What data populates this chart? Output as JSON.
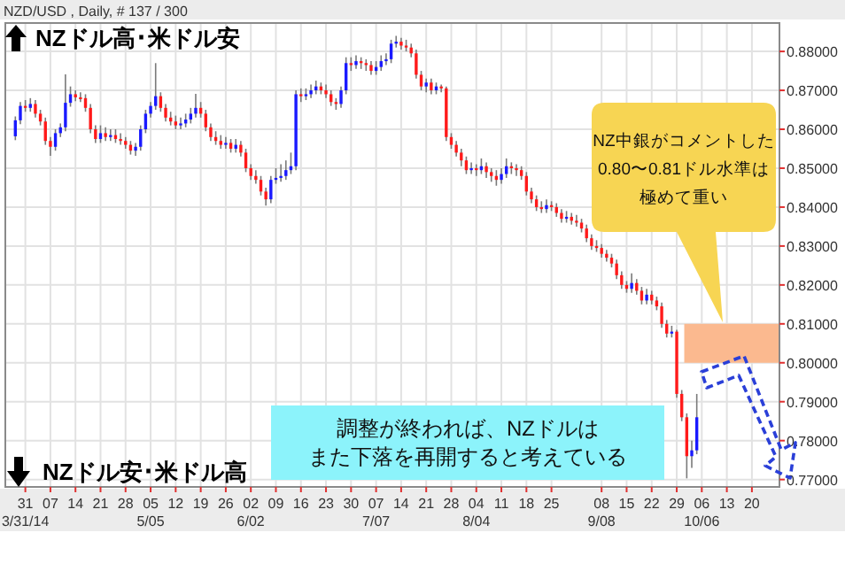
{
  "chart_data": {
    "type": "candlestick",
    "title": "NZD/USD , Daily, # 137 / 300",
    "categories": [
      null,
      null,
      "31\n3/31/14",
      null,
      null,
      null,
      null,
      "07",
      null,
      null,
      null,
      null,
      "14",
      null,
      null,
      null,
      null,
      "21",
      null,
      null,
      null,
      null,
      "28",
      null,
      null,
      null,
      null,
      "05\n5/05",
      null,
      null,
      null,
      null,
      "12",
      null,
      null,
      null,
      null,
      "19",
      null,
      null,
      null,
      null,
      "26",
      null,
      null,
      null,
      null,
      "02\n6/02",
      null,
      null,
      null,
      null,
      "09",
      null,
      null,
      null,
      null,
      "16",
      null,
      null,
      null,
      null,
      "23",
      null,
      null,
      null,
      null,
      "30",
      null,
      null,
      null,
      null,
      "07\n7/07",
      null,
      null,
      null,
      null,
      "14",
      null,
      null,
      null,
      null,
      "21",
      null,
      null,
      null,
      null,
      "28",
      null,
      null,
      null,
      null,
      "04\n8/04",
      null,
      null,
      null,
      null,
      "11",
      null,
      null,
      null,
      null,
      "18",
      null,
      null,
      null,
      null,
      "25",
      null,
      null,
      null,
      null,
      null,
      null,
      null,
      null,
      null,
      "08\n9/08",
      null,
      null,
      null,
      null,
      "15",
      null,
      null,
      null,
      null,
      "22",
      null,
      null,
      null,
      null,
      "29",
      null,
      null,
      null,
      null,
      "06\n10/06",
      null,
      null,
      null,
      null,
      "13",
      null,
      null,
      null,
      null,
      "20",
      null,
      null,
      null,
      null
    ],
    "ohlc": [
      [
        0.8582,
        0.8633,
        0.8572,
        0.8623
      ],
      [
        0.8623,
        0.867,
        0.8613,
        0.866
      ],
      [
        0.866,
        0.8675,
        0.8645,
        0.8655
      ],
      [
        0.8655,
        0.868,
        0.8645,
        0.8665
      ],
      [
        0.8665,
        0.8675,
        0.863,
        0.864
      ],
      [
        0.864,
        0.865,
        0.861,
        0.862
      ],
      [
        0.862,
        0.863,
        0.856,
        0.857
      ],
      [
        0.857,
        0.858,
        0.8532,
        0.8555
      ],
      [
        0.8555,
        0.86,
        0.8545,
        0.859
      ],
      [
        0.859,
        0.8615,
        0.858,
        0.8605
      ],
      [
        0.8605,
        0.8741,
        0.8595,
        0.8668
      ],
      [
        0.8668,
        0.871,
        0.8658,
        0.869
      ],
      [
        0.869,
        0.87,
        0.8672,
        0.8682
      ],
      [
        0.8682,
        0.8695,
        0.867,
        0.868
      ],
      [
        0.868,
        0.869,
        0.8645,
        0.8655
      ],
      [
        0.8655,
        0.8665,
        0.859,
        0.86
      ],
      [
        0.86,
        0.861,
        0.8565,
        0.8575
      ],
      [
        0.8575,
        0.861,
        0.8565,
        0.859
      ],
      [
        0.859,
        0.8605,
        0.857,
        0.858
      ],
      [
        0.858,
        0.86,
        0.857,
        0.8585
      ],
      [
        0.8585,
        0.86,
        0.8565,
        0.8575
      ],
      [
        0.8575,
        0.859,
        0.856,
        0.857
      ],
      [
        0.857,
        0.858,
        0.855,
        0.856
      ],
      [
        0.856,
        0.857,
        0.8535,
        0.8545
      ],
      [
        0.8545,
        0.8565,
        0.8532,
        0.8555
      ],
      [
        0.8555,
        0.861,
        0.8545,
        0.86
      ],
      [
        0.86,
        0.865,
        0.859,
        0.864
      ],
      [
        0.864,
        0.867,
        0.863,
        0.866
      ],
      [
        0.866,
        0.877,
        0.865,
        0.8685
      ],
      [
        0.8685,
        0.8695,
        0.8645,
        0.8655
      ],
      [
        0.8655,
        0.8665,
        0.862,
        0.863
      ],
      [
        0.863,
        0.8645,
        0.861,
        0.862
      ],
      [
        0.862,
        0.8635,
        0.86,
        0.861
      ],
      [
        0.861,
        0.863,
        0.86,
        0.8615
      ],
      [
        0.8615,
        0.864,
        0.8605,
        0.8625
      ],
      [
        0.8625,
        0.8655,
        0.8615,
        0.864
      ],
      [
        0.864,
        0.8691,
        0.863,
        0.8655
      ],
      [
        0.8655,
        0.867,
        0.863,
        0.864
      ],
      [
        0.864,
        0.865,
        0.8595,
        0.8605
      ],
      [
        0.8605,
        0.8615,
        0.857,
        0.858
      ],
      [
        0.858,
        0.8595,
        0.856,
        0.857
      ],
      [
        0.857,
        0.8585,
        0.855,
        0.856
      ],
      [
        0.856,
        0.858,
        0.855,
        0.8565
      ],
      [
        0.8565,
        0.8575,
        0.854,
        0.855
      ],
      [
        0.855,
        0.8575,
        0.854,
        0.856
      ],
      [
        0.856,
        0.857,
        0.853,
        0.854
      ],
      [
        0.854,
        0.855,
        0.849,
        0.85
      ],
      [
        0.85,
        0.851,
        0.847,
        0.848
      ],
      [
        0.848,
        0.8495,
        0.846,
        0.847
      ],
      [
        0.847,
        0.848,
        0.843,
        0.844
      ],
      [
        0.844,
        0.845,
        0.8404,
        0.842
      ],
      [
        0.842,
        0.848,
        0.841,
        0.847
      ],
      [
        0.847,
        0.85,
        0.846,
        0.8475
      ],
      [
        0.8475,
        0.851,
        0.8465,
        0.848
      ],
      [
        0.848,
        0.852,
        0.847,
        0.8495
      ],
      [
        0.8495,
        0.854,
        0.8485,
        0.8505
      ],
      [
        0.8505,
        0.87,
        0.8495,
        0.869
      ],
      [
        0.869,
        0.8705,
        0.867,
        0.8685
      ],
      [
        0.8685,
        0.8705,
        0.8675,
        0.869
      ],
      [
        0.869,
        0.8715,
        0.868,
        0.87
      ],
      [
        0.87,
        0.8725,
        0.869,
        0.871
      ],
      [
        0.871,
        0.872,
        0.869,
        0.87
      ],
      [
        0.87,
        0.8715,
        0.868,
        0.869
      ],
      [
        0.869,
        0.87,
        0.866,
        0.867
      ],
      [
        0.867,
        0.868,
        0.865,
        0.8665
      ],
      [
        0.8665,
        0.871,
        0.8655,
        0.87
      ],
      [
        0.87,
        0.8785,
        0.869,
        0.877
      ],
      [
        0.877,
        0.8785,
        0.875,
        0.8765
      ],
      [
        0.8765,
        0.879,
        0.8755,
        0.8775
      ],
      [
        0.8775,
        0.8785,
        0.8755,
        0.877
      ],
      [
        0.877,
        0.878,
        0.875,
        0.8765
      ],
      [
        0.8765,
        0.8775,
        0.874,
        0.875
      ],
      [
        0.875,
        0.8775,
        0.874,
        0.876
      ],
      [
        0.876,
        0.879,
        0.875,
        0.8775
      ],
      [
        0.8775,
        0.8795,
        0.8765,
        0.878
      ],
      [
        0.878,
        0.883,
        0.877,
        0.882
      ],
      [
        0.882,
        0.884,
        0.881,
        0.8825
      ],
      [
        0.8825,
        0.8835,
        0.8805,
        0.8815
      ],
      [
        0.8815,
        0.883,
        0.88,
        0.881
      ],
      [
        0.881,
        0.882,
        0.8785,
        0.8795
      ],
      [
        0.8795,
        0.8805,
        0.873,
        0.874
      ],
      [
        0.874,
        0.875,
        0.87,
        0.871
      ],
      [
        0.871,
        0.873,
        0.8695,
        0.872
      ],
      [
        0.872,
        0.873,
        0.869,
        0.87
      ],
      [
        0.87,
        0.872,
        0.869,
        0.871
      ],
      [
        0.871,
        0.8715,
        0.8695,
        0.8705
      ],
      [
        0.8705,
        0.871,
        0.857,
        0.858
      ],
      [
        0.858,
        0.859,
        0.855,
        0.856
      ],
      [
        0.856,
        0.857,
        0.853,
        0.854
      ],
      [
        0.854,
        0.855,
        0.8505,
        0.852
      ],
      [
        0.852,
        0.853,
        0.8485,
        0.8495
      ],
      [
        0.8495,
        0.8515,
        0.8485,
        0.85
      ],
      [
        0.85,
        0.851,
        0.848,
        0.8495
      ],
      [
        0.8495,
        0.8525,
        0.8485,
        0.8505
      ],
      [
        0.8505,
        0.8515,
        0.8475,
        0.849
      ],
      [
        0.849,
        0.85,
        0.8465,
        0.848
      ],
      [
        0.848,
        0.8495,
        0.8455,
        0.847
      ],
      [
        0.847,
        0.85,
        0.846,
        0.8485
      ],
      [
        0.8485,
        0.8525,
        0.8475,
        0.8505
      ],
      [
        0.8505,
        0.8515,
        0.8485,
        0.85
      ],
      [
        0.85,
        0.851,
        0.848,
        0.8495
      ],
      [
        0.8495,
        0.8505,
        0.847,
        0.848
      ],
      [
        0.848,
        0.849,
        0.843,
        0.844
      ],
      [
        0.844,
        0.845,
        0.841,
        0.842
      ],
      [
        0.842,
        0.843,
        0.839,
        0.84
      ],
      [
        0.84,
        0.8415,
        0.8385,
        0.8395
      ],
      [
        0.8395,
        0.842,
        0.8385,
        0.8405
      ],
      [
        0.8405,
        0.8415,
        0.839,
        0.84
      ],
      [
        0.84,
        0.841,
        0.8375,
        0.8385
      ],
      [
        0.8385,
        0.8395,
        0.836,
        0.837
      ],
      [
        0.837,
        0.839,
        0.836,
        0.8375
      ],
      [
        0.8375,
        0.8385,
        0.8355,
        0.8365
      ],
      [
        0.8365,
        0.838,
        0.835,
        0.836
      ],
      [
        0.836,
        0.837,
        0.8335,
        0.8345
      ],
      [
        0.8345,
        0.8355,
        0.831,
        0.832
      ],
      [
        0.832,
        0.833,
        0.829,
        0.83
      ],
      [
        0.83,
        0.8315,
        0.8285,
        0.8295
      ],
      [
        0.8295,
        0.8305,
        0.827,
        0.828
      ],
      [
        0.828,
        0.829,
        0.826,
        0.827
      ],
      [
        0.827,
        0.828,
        0.8245,
        0.8255
      ],
      [
        0.8255,
        0.8265,
        0.8215,
        0.8225
      ],
      [
        0.8225,
        0.8235,
        0.819,
        0.82
      ],
      [
        0.82,
        0.821,
        0.818,
        0.819
      ],
      [
        0.819,
        0.823,
        0.818,
        0.8205
      ],
      [
        0.8205,
        0.8215,
        0.8175,
        0.8185
      ],
      [
        0.8185,
        0.8195,
        0.815,
        0.816
      ],
      [
        0.816,
        0.819,
        0.815,
        0.8175
      ],
      [
        0.8175,
        0.8185,
        0.815,
        0.816
      ],
      [
        0.816,
        0.817,
        0.8135,
        0.8145
      ],
      [
        0.8145,
        0.8155,
        0.809,
        0.81
      ],
      [
        0.81,
        0.811,
        0.8065,
        0.8075
      ],
      [
        0.8075,
        0.8095,
        0.8065,
        0.808
      ],
      [
        0.808,
        0.8085,
        0.791,
        0.792
      ],
      [
        0.792,
        0.793,
        0.785,
        0.786
      ],
      [
        0.786,
        0.787,
        0.7703,
        0.776
      ],
      [
        0.776,
        0.78,
        0.773,
        0.7775
      ],
      [
        0.7775,
        0.792,
        0.7765,
        0.786
      ],
      null,
      null,
      null,
      null,
      null,
      null,
      null,
      null,
      null,
      null,
      null,
      null,
      null,
      null,
      null
    ],
    "ylim": [
      0.7681,
      0.8873
    ],
    "yticks": [
      {
        "value": 0.77,
        "label": "0.77000"
      },
      {
        "value": 0.78,
        "label": "0.78000"
      },
      {
        "value": 0.79,
        "label": "0.79000"
      },
      {
        "value": 0.8,
        "label": "0.80000"
      },
      {
        "value": 0.81,
        "label": "0.81000"
      },
      {
        "value": 0.82,
        "label": "0.82000"
      },
      {
        "value": 0.83,
        "label": "0.83000"
      },
      {
        "value": 0.84,
        "label": "0.84000"
      },
      {
        "value": 0.85,
        "label": "0.85000"
      },
      {
        "value": 0.86,
        "label": "0.86000"
      },
      {
        "value": 0.87,
        "label": "0.87000"
      },
      {
        "value": 0.88,
        "label": "0.88000"
      }
    ],
    "grid": true,
    "bands": [
      {
        "axis": "y",
        "from": 0.8,
        "to": 0.81,
        "label": null,
        "color": "#fbb98f"
      }
    ],
    "annotations": [
      "NZドル高･米ドル安",
      "NZドル安･米ドル高",
      "NZ中銀がコメントした0.80〜0.81ドル水準は極めて重い",
      "調整が終われば、NZドルはまた下落を再開すると考えている"
    ]
  }
}
